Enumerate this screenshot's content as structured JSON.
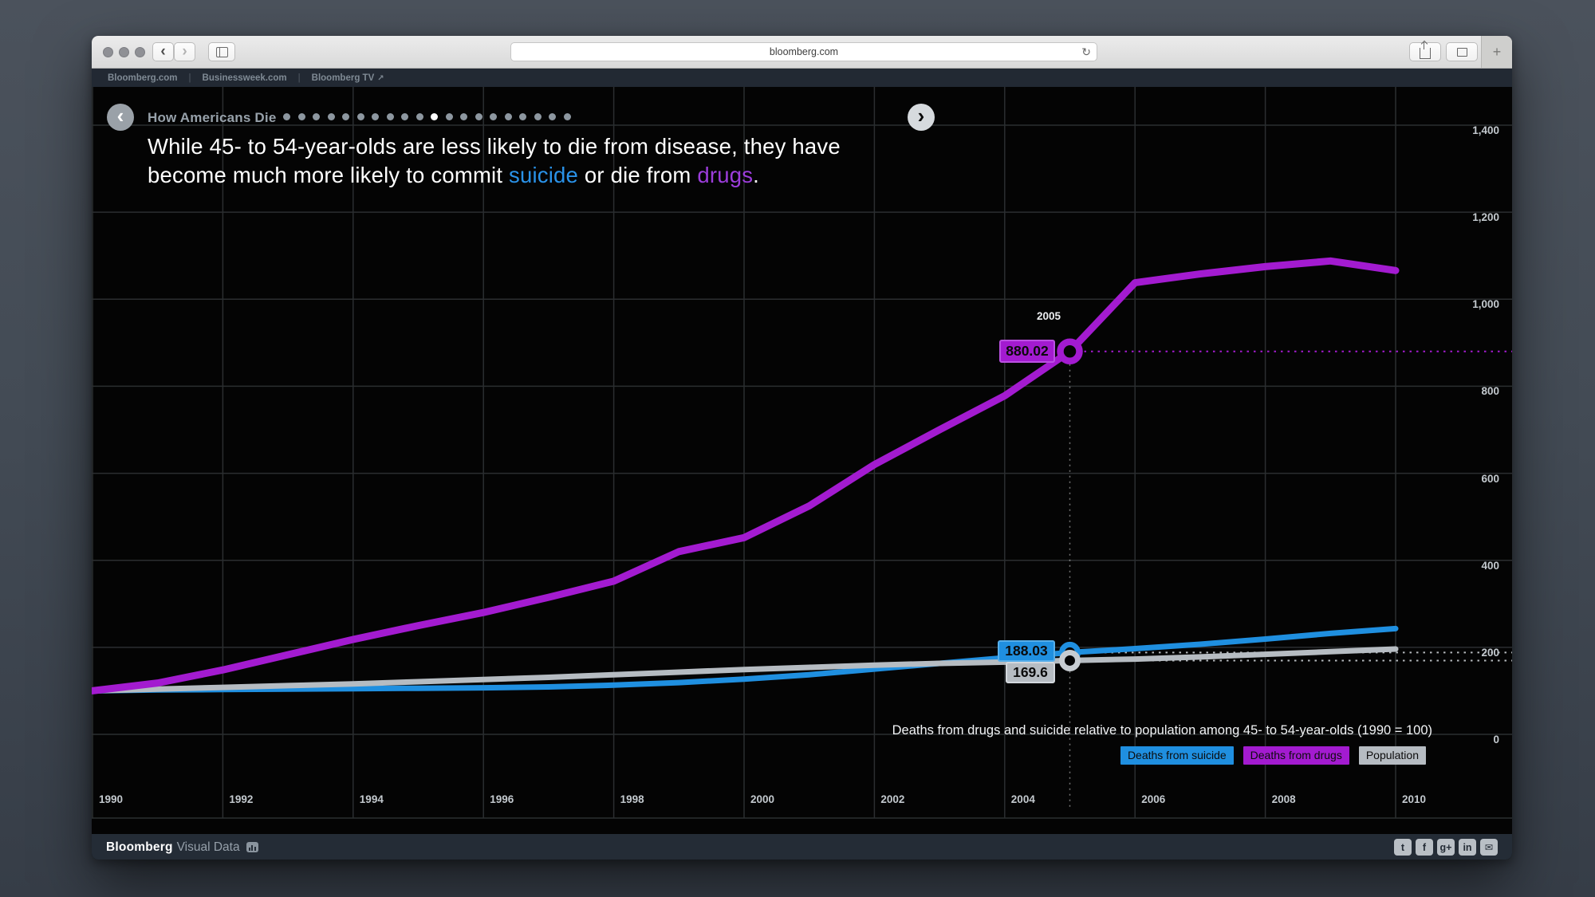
{
  "browser": {
    "url": "bloomberg.com",
    "toolbar": {
      "back_glyph": "‹",
      "forward_glyph": "›",
      "newtab_glyph": "+",
      "reload_glyph": "↻"
    }
  },
  "site_nav": {
    "links": [
      "Bloomberg.com",
      "Businessweek.com",
      "Bloomberg TV"
    ]
  },
  "header": {
    "title": "How Americans Die",
    "dots_total": 20,
    "active_dot": 10,
    "back_glyph": "‹",
    "next_glyph": "›"
  },
  "headline": {
    "part1": "While 45- to 54-year-olds are less likely to die from disease, they have become much more likely to commit ",
    "highlight_suicide": "suicide",
    "part2": " or die from ",
    "highlight_drugs": "drugs",
    "part3": "."
  },
  "chart_data": {
    "type": "line",
    "title": "How Americans Die",
    "subtitle": "Deaths from drugs and suicide relative to population among 45- to 54-year-olds (1990 = 100)",
    "x": [
      1990,
      1991,
      1992,
      1993,
      1994,
      1995,
      1996,
      1997,
      1998,
      1999,
      2000,
      2001,
      2002,
      2003,
      2004,
      2005,
      2006,
      2007,
      2008,
      2009,
      2010
    ],
    "x_tick_labels": [
      "1990",
      "1992",
      "1994",
      "1996",
      "1998",
      "2000",
      "2002",
      "2004",
      "2006",
      "2008",
      "2010"
    ],
    "x_tick_years": [
      1990,
      1992,
      1994,
      1996,
      1998,
      2000,
      2002,
      2004,
      2006,
      2008,
      2010
    ],
    "y_ticks": [
      0,
      200,
      400,
      600,
      800,
      1000,
      1200,
      1400
    ],
    "y_tick_labels": [
      "0",
      "200",
      "400",
      "600",
      "800",
      "1,000",
      "1,200",
      "1,400"
    ],
    "ylim": [
      0,
      1490
    ],
    "grid": true,
    "legend_position": "bottom-right",
    "series": [
      {
        "name": "Deaths from suicide",
        "color": "#1f8fe0",
        "values": [
          100,
          102,
          103,
          104,
          105,
          106,
          107,
          109,
          113,
          119,
          127,
          137,
          150,
          163,
          176,
          188.03,
          197,
          207,
          219,
          232,
          243
        ]
      },
      {
        "name": "Population",
        "color": "#b6bcc2",
        "values": [
          100,
          104,
          108,
          112,
          116,
          121,
          126,
          131,
          137,
          143,
          149,
          154,
          159,
          163,
          166,
          169.6,
          173,
          178,
          184,
          190,
          196
        ]
      },
      {
        "name": "Deaths from drugs",
        "color": "#a31bd0",
        "values": [
          100,
          118,
          148,
          183,
          218,
          250,
          280,
          315,
          352,
          420,
          452,
          525,
          620,
          700,
          778,
          880.02,
          1038,
          1058,
          1075,
          1088,
          1066
        ]
      }
    ],
    "highlight": {
      "year": 2005,
      "drugs": 880.02,
      "suicide": 188.03,
      "population": 169.6
    }
  },
  "callout": {
    "year": "2005",
    "drugs": "880.02",
    "suicide": "188.03",
    "population": "169.6"
  },
  "legend": {
    "items": [
      {
        "label": "Deaths from suicide",
        "color": "#1f8fe0"
      },
      {
        "label": "Deaths from drugs",
        "color": "#a31bd0"
      },
      {
        "label": "Population",
        "color": "#b6bcc2"
      }
    ]
  },
  "footer": {
    "brand_bold": "Bloomberg",
    "brand_light": "Visual Data",
    "social": [
      {
        "name": "twitter",
        "glyph": "t"
      },
      {
        "name": "facebook",
        "glyph": "f"
      },
      {
        "name": "google-plus",
        "glyph": "g+"
      },
      {
        "name": "linkedin",
        "glyph": "in"
      },
      {
        "name": "email",
        "glyph": "✉"
      }
    ]
  }
}
